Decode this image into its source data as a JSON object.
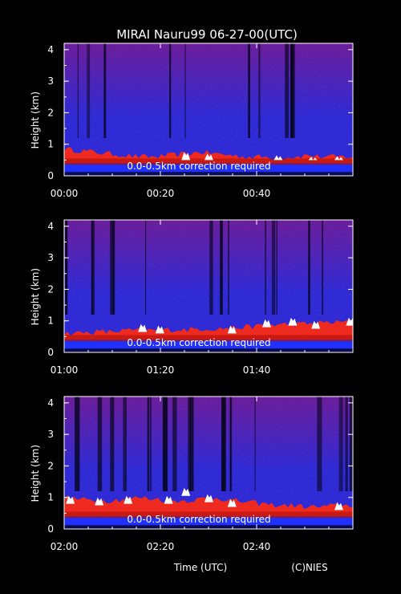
{
  "chart_data": {
    "type": "heatmap",
    "title": "MIRAI Nauru99 06-27-00(UTC)",
    "xlabel": "Time (UTC)",
    "ylabel": "Height (km)",
    "credit": "(C)NIES",
    "colors": {
      "background": "#000000",
      "clear_air": "#2a2ad8",
      "weak_echo": "#6a1c9a",
      "boundary_layer": "#ff2a10",
      "strong_echo": "#ffffff",
      "dropout": "#05051a"
    },
    "panels": [
      {
        "ylim": [
          0,
          4.2
        ],
        "yticks": [
          "0",
          "1",
          "2",
          "3",
          "4"
        ],
        "xticks": [
          "00:00",
          "00:20",
          "00:40"
        ],
        "note": "0.0-0.5km correction required",
        "cloud_base_km": [
          0.85,
          0.8,
          0.75,
          0.7,
          0.65,
          0.6,
          0.6,
          0.65,
          0.7,
          0.75,
          0.7,
          0.65,
          0.6,
          0.6,
          0.55,
          0.6,
          0.65,
          0.6,
          0.6,
          0.6
        ],
        "strong_echo_peaks": [
          {
            "t": 0.42,
            "h": 0.75
          },
          {
            "t": 0.5,
            "h": 0.7
          },
          {
            "t": 0.74,
            "h": 0.65
          },
          {
            "t": 0.86,
            "h": 0.6
          },
          {
            "t": 0.95,
            "h": 0.62
          }
        ]
      },
      {
        "ylim": [
          0,
          4.2
        ],
        "yticks": [
          "0",
          "1",
          "2",
          "3",
          "4"
        ],
        "xticks": [
          "01:00",
          "01:20",
          "01:40"
        ],
        "note": "0.0-0.5km correction required",
        "cloud_base_km": [
          0.6,
          0.62,
          0.65,
          0.65,
          0.7,
          0.7,
          0.7,
          0.72,
          0.72,
          0.75,
          0.75,
          0.78,
          0.8,
          0.85,
          0.88,
          0.9,
          0.9,
          0.95,
          0.95,
          1.0
        ],
        "strong_echo_peaks": [
          {
            "t": 0.27,
            "h": 0.9
          },
          {
            "t": 0.33,
            "h": 0.85
          },
          {
            "t": 0.58,
            "h": 0.85
          },
          {
            "t": 0.7,
            "h": 1.05
          },
          {
            "t": 0.79,
            "h": 1.1
          },
          {
            "t": 0.87,
            "h": 1.0
          },
          {
            "t": 0.99,
            "h": 1.1
          }
        ]
      },
      {
        "ylim": [
          0,
          4.2
        ],
        "yticks": [
          "0",
          "1",
          "2",
          "3",
          "4"
        ],
        "xticks": [
          "02:00",
          "02:20",
          "02:40"
        ],
        "note": "0.0-0.5km correction required",
        "cloud_base_km": [
          1.0,
          0.95,
          0.9,
          0.9,
          0.95,
          1.0,
          0.95,
          0.9,
          0.9,
          0.95,
          1.0,
          0.9,
          0.85,
          0.8,
          0.75,
          0.75,
          0.7,
          0.7,
          0.75,
          0.75
        ],
        "strong_echo_peaks": [
          {
            "t": 0.02,
            "h": 1.05
          },
          {
            "t": 0.12,
            "h": 1.0
          },
          {
            "t": 0.22,
            "h": 1.05
          },
          {
            "t": 0.36,
            "h": 1.05
          },
          {
            "t": 0.42,
            "h": 1.3
          },
          {
            "t": 0.5,
            "h": 1.1
          },
          {
            "t": 0.58,
            "h": 0.95
          },
          {
            "t": 0.95,
            "h": 0.85
          }
        ]
      }
    ]
  }
}
